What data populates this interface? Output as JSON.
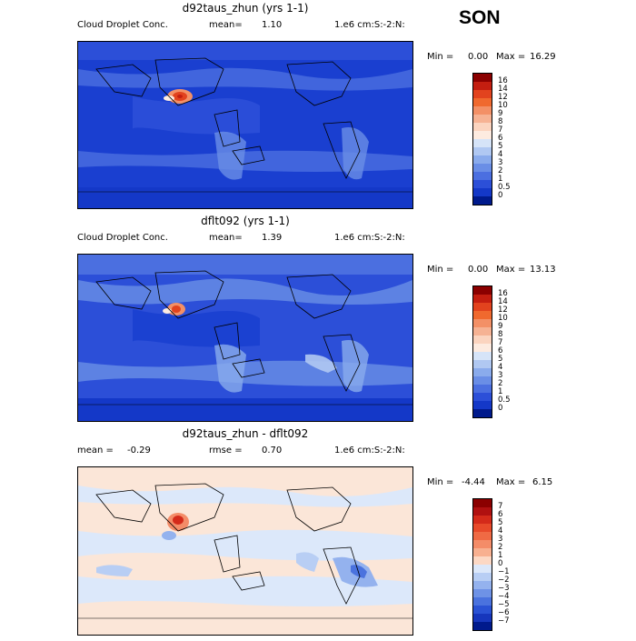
{
  "season": "SON",
  "panels": [
    {
      "title": "d92taus_zhun (yrs 1-1)",
      "left_label": "Cloud Droplet Conc.",
      "mean_label": "mean=",
      "mean_value": "1.10",
      "right_label": "1.e6 cm:S:-2:N:",
      "min_label": "Min =",
      "min_value": "0.00",
      "max_label": "Max =",
      "max_value": "16.29",
      "colorbar_labels": [
        "16",
        "14",
        "12",
        "10",
        "9",
        "8",
        "7",
        "6",
        "5",
        "4",
        "3",
        "2",
        "1",
        "0.5",
        "0"
      ],
      "colors": [
        "#8b0000",
        "#c41e10",
        "#e2431e",
        "#f0692e",
        "#f39066",
        "#f6b293",
        "#fbd4bf",
        "#fdebe0",
        "#d6e4f8",
        "#b0c8f2",
        "#8aabec",
        "#6a8ee6",
        "#4b6fe0",
        "#2c4fd8",
        "#1438c8",
        "#001a8c"
      ]
    },
    {
      "title": "dflt092 (yrs 1-1)",
      "left_label": "Cloud Droplet Conc.",
      "mean_label": "mean=",
      "mean_value": "1.39",
      "right_label": "1.e6 cm:S:-2:N:",
      "min_label": "Min =",
      "min_value": "0.00",
      "max_label": "Max =",
      "max_value": "13.13",
      "colorbar_labels": [
        "16",
        "14",
        "12",
        "10",
        "9",
        "8",
        "7",
        "6",
        "5",
        "4",
        "3",
        "2",
        "1",
        "0.5",
        "0"
      ],
      "colors": [
        "#8b0000",
        "#c41e10",
        "#e2431e",
        "#f0692e",
        "#f39066",
        "#f6b293",
        "#fbd4bf",
        "#fdebe0",
        "#d6e4f8",
        "#b0c8f2",
        "#8aabec",
        "#6a8ee6",
        "#4b6fe0",
        "#2c4fd8",
        "#1438c8",
        "#001a8c"
      ]
    },
    {
      "title": "d92taus_zhun - dflt092",
      "left_label": "mean =",
      "mean_label": "",
      "mean_value": "-0.29",
      "rmse_label": "rmse =",
      "rmse_value": "0.70",
      "right_label": "1.e6 cm:S:-2:N:",
      "min_label": "Min =",
      "min_value": "-4.44",
      "max_label": "Max =",
      "max_value": "6.15",
      "colorbar_labels": [
        "7",
        "6",
        "5",
        "4",
        "3",
        "2",
        "1",
        "0",
        "−1",
        "−2",
        "−3",
        "−4",
        "−5",
        "−6",
        "−7"
      ],
      "colors": [
        "#8b0000",
        "#b01010",
        "#d42a1a",
        "#e84a2a",
        "#f06a44",
        "#f48c68",
        "#f8b090",
        "#fcd8c4",
        "#dce8fa",
        "#b8cef4",
        "#94b2ee",
        "#6e92e6",
        "#4a72de",
        "#2a52d4",
        "#1636bc",
        "#001a8c"
      ]
    }
  ],
  "chart_data": [
    {
      "type": "heatmap",
      "title": "d92taus_zhun (yrs 1-1)",
      "variable": "Cloud Droplet Conc.",
      "units": "1.e6 cm:S:-2:N:",
      "mean": 1.1,
      "min": 0.0,
      "max": 16.29,
      "levels": [
        0,
        0.5,
        1,
        2,
        3,
        4,
        5,
        6,
        7,
        8,
        9,
        10,
        12,
        14,
        16
      ]
    },
    {
      "type": "heatmap",
      "title": "dflt092 (yrs 1-1)",
      "variable": "Cloud Droplet Conc.",
      "units": "1.e6 cm:S:-2:N:",
      "mean": 1.39,
      "min": 0.0,
      "max": 13.13,
      "levels": [
        0,
        0.5,
        1,
        2,
        3,
        4,
        5,
        6,
        7,
        8,
        9,
        10,
        12,
        14,
        16
      ]
    },
    {
      "type": "heatmap",
      "title": "d92taus_zhun - dflt092",
      "units": "1.e6 cm:S:-2:N:",
      "mean": -0.29,
      "rmse": 0.7,
      "min": -4.44,
      "max": 6.15,
      "levels": [
        -7,
        -6,
        -5,
        -4,
        -3,
        -2,
        -1,
        0,
        1,
        2,
        3,
        4,
        5,
        6,
        7
      ]
    }
  ]
}
